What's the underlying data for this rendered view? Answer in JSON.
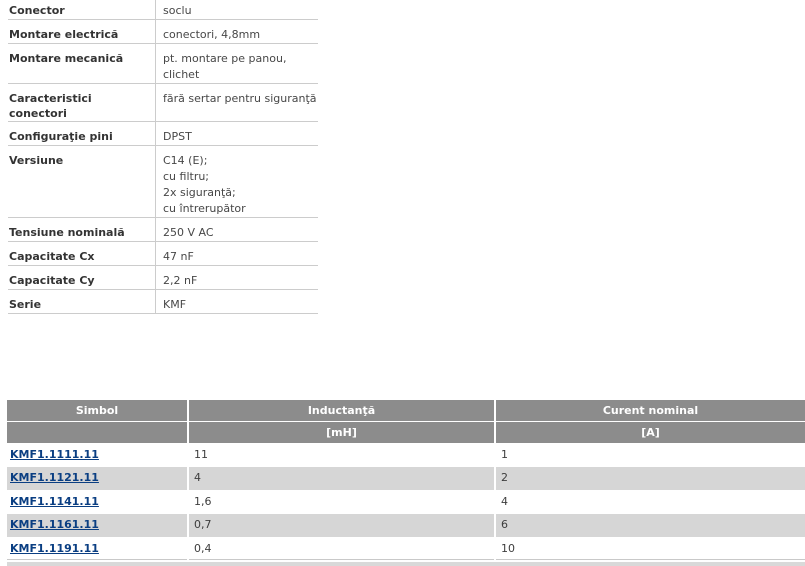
{
  "spec_table": {
    "rows": [
      {
        "label": "Conector",
        "value": "soclu"
      },
      {
        "label": "Montare electrică",
        "value": "conectori, 4,8mm"
      },
      {
        "label": "Montare mecanică",
        "value": "pt. montare pe panou,\nclichet"
      },
      {
        "label": "Caracteristici conectori",
        "value": "fără sertar pentru siguranţă"
      },
      {
        "label": "Configuraţie pini",
        "value": "DPST"
      },
      {
        "label": "Versiune",
        "value": "C14 (E);\ncu filtru;\n2x siguranţă;\ncu întrerupător"
      },
      {
        "label": "Tensiune nominală",
        "value": "250 V AC"
      },
      {
        "label": "Capacitate Cx",
        "value": "47 nF"
      },
      {
        "label": "Capacitate Cy",
        "value": "2,2 nF"
      },
      {
        "label": "Serie",
        "value": "KMF"
      }
    ]
  },
  "parts_table": {
    "header": {
      "symbol": "Simbol",
      "inductance": "Inductanţă",
      "current": "Curent nominal",
      "inductance_unit": "[mH]",
      "current_unit": "[A]"
    },
    "rows": [
      {
        "symbol": "KMF1.1111.11",
        "inductance": "11",
        "current": "1"
      },
      {
        "symbol": "KMF1.1121.11",
        "inductance": "4",
        "current": "2"
      },
      {
        "symbol": "KMF1.1141.11",
        "inductance": "1,6",
        "current": "4"
      },
      {
        "symbol": "KMF1.1161.11",
        "inductance": "0,7",
        "current": "6"
      },
      {
        "symbol": "KMF1.1191.11",
        "inductance": "0,4",
        "current": "10"
      }
    ]
  },
  "colors": {
    "header_bg": "#8c8c8c",
    "header_text": "#ffffff",
    "alt_row_bg": "#d6d6d6",
    "link": "#0a3e82",
    "border": "#cccccc"
  }
}
